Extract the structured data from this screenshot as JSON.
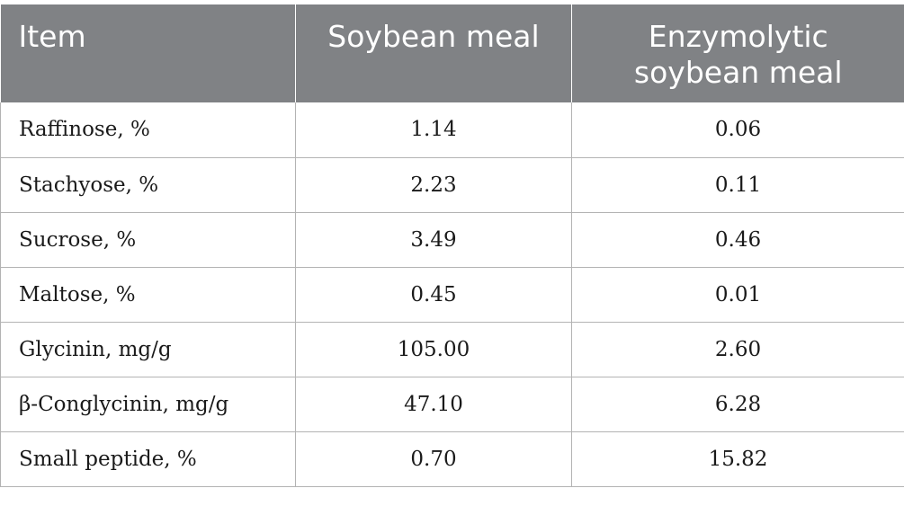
{
  "header": {
    "item": "Item",
    "soybean_meal": "Soybean meal",
    "enzymolytic_line1": "Enzymolytic",
    "enzymolytic_line2": "soybean meal"
  },
  "rows": [
    {
      "item": "Raffinose, %",
      "soybean_meal": "1.14",
      "enzymolytic": "0.06"
    },
    {
      "item": "Stachyose, %",
      "soybean_meal": "2.23",
      "enzymolytic": "0.11"
    },
    {
      "item": "Sucrose, %",
      "soybean_meal": "3.49",
      "enzymolytic": "0.46"
    },
    {
      "item": "Maltose, %",
      "soybean_meal": "0.45",
      "enzymolytic": "0.01"
    },
    {
      "item": "Glycinin, mg/g",
      "soybean_meal": "105.00",
      "enzymolytic": "2.60"
    },
    {
      "item": "β-Conglycinin, mg/g",
      "soybean_meal": "47.10",
      "enzymolytic": "6.28"
    },
    {
      "item": "Small peptide, %",
      "soybean_meal": "0.70",
      "enzymolytic": "15.82"
    }
  ],
  "colors": {
    "header_bg": "#808285",
    "header_text": "#ffffff",
    "border": "#b3b3b3"
  }
}
